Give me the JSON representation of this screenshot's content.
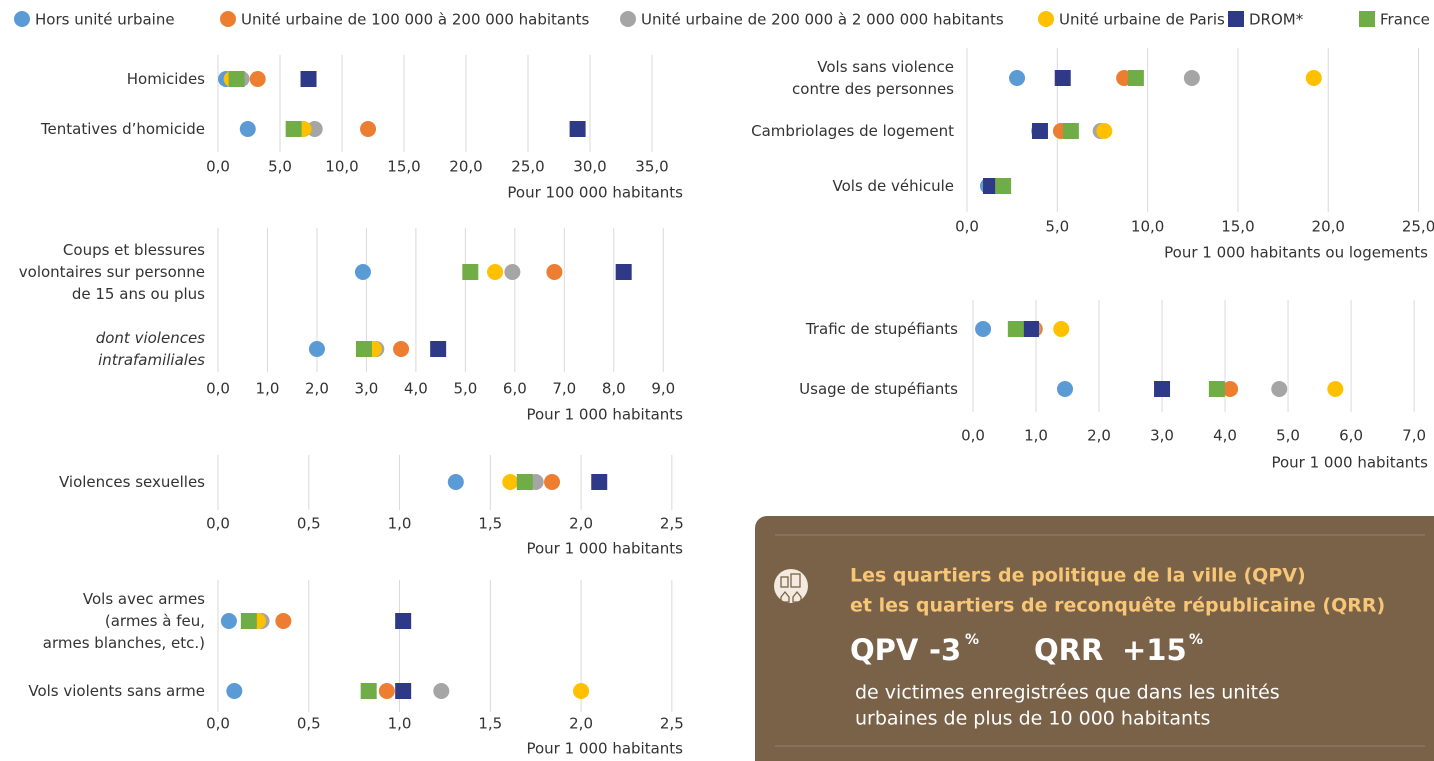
{
  "chart_data": [
    {
      "type": "dot",
      "categories": [
        "Homicides",
        "Tentatives d’homicide"
      ],
      "xlim": [
        0,
        37.5
      ],
      "xticks": [
        {
          "value": 0,
          "label": "0,0"
        },
        {
          "value": 5,
          "label": "5,0"
        },
        {
          "value": 10,
          "label": "10,0"
        },
        {
          "value": 15,
          "label": "15,0"
        },
        {
          "value": 20,
          "label": "20,0"
        },
        {
          "value": 25,
          "label": "25,0"
        },
        {
          "value": 30,
          "label": "30,0"
        },
        {
          "value": 35,
          "label": "35,0"
        }
      ],
      "x_label": "Pour 100 000 habitants",
      "grid": true,
      "series": [
        {
          "name": "Hors unité urbaine",
          "color": "#5b9bd5",
          "marker": "circle",
          "values": [
            0.65,
            2.4
          ]
        },
        {
          "name": "Unité urbaine de 100 000 à 200 000 habitants",
          "color": "#ed7d31",
          "marker": "circle",
          "values": [
            3.2,
            12.1
          ]
        },
        {
          "name": "Unité urbaine de 200 000 à 2 000 000 habitants",
          "color": "#a5a5a5",
          "marker": "circle",
          "values": [
            1.9,
            7.8
          ]
        },
        {
          "name": "Unité urbaine de Paris",
          "color": "#ffc000",
          "marker": "circle",
          "values": [
            1.1,
            6.9
          ]
        },
        {
          "name": "DROM*",
          "color": "#2e3a87",
          "marker": "square",
          "values": [
            7.3,
            29.0
          ]
        },
        {
          "name": "France",
          "color": "#70ad47",
          "marker": "square",
          "values": [
            1.5,
            6.1
          ]
        }
      ]
    },
    {
      "type": "dot",
      "categories": [
        "Coups et blessures\nvolontaires sur personne\nde 15 ans ou plus",
        "dont violences\nintrafamiliales"
      ],
      "category_style": [
        "normal",
        "italic"
      ],
      "xlim": [
        0,
        9.5
      ],
      "xticks": [
        {
          "value": 0,
          "label": "0,0"
        },
        {
          "value": 1,
          "label": "1,0"
        },
        {
          "value": 2,
          "label": "2,0"
        },
        {
          "value": 3,
          "label": "3,0"
        },
        {
          "value": 4,
          "label": "4,0"
        },
        {
          "value": 5,
          "label": "5,0"
        },
        {
          "value": 6,
          "label": "6,0"
        },
        {
          "value": 7,
          "label": "7,0"
        },
        {
          "value": 8,
          "label": "8,0"
        },
        {
          "value": 9,
          "label": "9,0"
        }
      ],
      "x_label": "Pour 1 000 habitants",
      "grid": true,
      "series": [
        {
          "name": "Hors unité urbaine",
          "color": "#5b9bd5",
          "marker": "circle",
          "values": [
            2.93,
            2.0
          ]
        },
        {
          "name": "Unité urbaine de 100 000 à 200 000 habitants",
          "color": "#ed7d31",
          "marker": "circle",
          "values": [
            6.8,
            3.7
          ]
        },
        {
          "name": "Unité urbaine de 200 000 à 2 000 000 habitants",
          "color": "#a5a5a5",
          "marker": "circle",
          "values": [
            5.95,
            3.2
          ]
        },
        {
          "name": "Unité urbaine de Paris",
          "color": "#ffc000",
          "marker": "circle",
          "values": [
            5.6,
            3.15
          ]
        },
        {
          "name": "DROM*",
          "color": "#2e3a87",
          "marker": "square",
          "values": [
            8.2,
            4.45
          ]
        },
        {
          "name": "France",
          "color": "#70ad47",
          "marker": "square",
          "values": [
            5.1,
            2.95
          ]
        }
      ]
    },
    {
      "type": "dot",
      "categories": [
        "Violences sexuelles"
      ],
      "xlim": [
        0,
        2.6
      ],
      "xticks": [
        {
          "value": 0,
          "label": "0,0"
        },
        {
          "value": 0.5,
          "label": "0,5"
        },
        {
          "value": 1,
          "label": "1,0"
        },
        {
          "value": 1.5,
          "label": "1,5"
        },
        {
          "value": 2,
          "label": "2,0"
        },
        {
          "value": 2.5,
          "label": "2,5"
        }
      ],
      "x_label": "Pour 1 000 habitants",
      "grid": true,
      "series": [
        {
          "name": "Hors unité urbaine",
          "color": "#5b9bd5",
          "marker": "circle",
          "values": [
            1.31
          ]
        },
        {
          "name": "Unité urbaine de 100 000 à 200 000 habitants",
          "color": "#ed7d31",
          "marker": "circle",
          "values": [
            1.84
          ]
        },
        {
          "name": "Unité urbaine de 200 000 à 2 000 000 habitants",
          "color": "#a5a5a5",
          "marker": "circle",
          "values": [
            1.75
          ]
        },
        {
          "name": "Unité urbaine de Paris",
          "color": "#ffc000",
          "marker": "circle",
          "values": [
            1.61
          ]
        },
        {
          "name": "DROM*",
          "color": "#2e3a87",
          "marker": "square",
          "values": [
            2.1
          ]
        },
        {
          "name": "France",
          "color": "#70ad47",
          "marker": "square",
          "values": [
            1.69
          ]
        }
      ]
    },
    {
      "type": "dot",
      "categories": [
        "Vols avec armes\n(armes à feu,\narmes blanches, etc.)",
        "Vols violents sans arme"
      ],
      "xlim": [
        0,
        2.6
      ],
      "xticks": [
        {
          "value": 0,
          "label": "0,0"
        },
        {
          "value": 0.5,
          "label": "0,5"
        },
        {
          "value": 1,
          "label": "1,0"
        },
        {
          "value": 1.5,
          "label": "1,5"
        },
        {
          "value": 2,
          "label": "2,0"
        },
        {
          "value": 2.5,
          "label": "2,5"
        }
      ],
      "x_label": "Pour 1 000 habitants",
      "grid": true,
      "series": [
        {
          "name": "Hors unité urbaine",
          "color": "#5b9bd5",
          "marker": "circle",
          "values": [
            0.06,
            0.09
          ]
        },
        {
          "name": "Unité urbaine de 100 000 à 200 000 habitants",
          "color": "#ed7d31",
          "marker": "circle",
          "values": [
            0.36,
            0.93
          ]
        },
        {
          "name": "Unité urbaine de 200 000 à 2 000 000 habitants",
          "color": "#a5a5a5",
          "marker": "circle",
          "values": [
            0.24,
            1.23
          ]
        },
        {
          "name": "Unité urbaine de Paris",
          "color": "#ffc000",
          "marker": "circle",
          "values": [
            0.22,
            2.0
          ]
        },
        {
          "name": "DROM*",
          "color": "#2e3a87",
          "marker": "square",
          "values": [
            1.02,
            1.02
          ]
        },
        {
          "name": "France",
          "color": "#70ad47",
          "marker": "square",
          "values": [
            0.17,
            0.83
          ]
        }
      ]
    },
    {
      "type": "dot",
      "categories": [
        "Vols sans violence\ncontre des personnes",
        "Cambriolages de logement",
        "Vols de véhicule"
      ],
      "xlim": [
        0,
        25.8
      ],
      "xticks": [
        {
          "value": 0,
          "label": "0,0"
        },
        {
          "value": 5,
          "label": "5,0"
        },
        {
          "value": 10,
          "label": "10,0"
        },
        {
          "value": 15,
          "label": "15,0"
        },
        {
          "value": 20,
          "label": "20,0"
        },
        {
          "value": 25,
          "label": "25,0"
        }
      ],
      "x_label": "Pour 1 000 habitants ou logements",
      "grid": true,
      "series": [
        {
          "name": "Hors unité urbaine",
          "color": "#5b9bd5",
          "marker": "circle",
          "values": [
            2.77,
            4.0,
            1.16
          ]
        },
        {
          "name": "Unité urbaine de 100 000 à 200 000 habitants",
          "color": "#ed7d31",
          "marker": "circle",
          "values": [
            8.7,
            5.2,
            1.8
          ]
        },
        {
          "name": "Unité urbaine de 200 000 à 2 000 000 habitants",
          "color": "#a5a5a5",
          "marker": "circle",
          "values": [
            12.45,
            7.4,
            1.9
          ]
        },
        {
          "name": "Unité urbaine de Paris",
          "color": "#ffc000",
          "marker": "circle",
          "values": [
            19.2,
            7.6,
            1.7
          ]
        },
        {
          "name": "DROM*",
          "color": "#2e3a87",
          "marker": "square",
          "values": [
            5.3,
            4.04,
            1.33
          ]
        },
        {
          "name": "France",
          "color": "#70ad47",
          "marker": "square",
          "values": [
            9.35,
            5.75,
            2.0
          ]
        }
      ]
    },
    {
      "type": "dot",
      "categories": [
        "Trafic de stupéfiants",
        "Usage de stupéfiants"
      ],
      "xlim": [
        0,
        7.3
      ],
      "xticks": [
        {
          "value": 0,
          "label": "0,0"
        },
        {
          "value": 1,
          "label": "1,0"
        },
        {
          "value": 2,
          "label": "2,0"
        },
        {
          "value": 3,
          "label": "3,0"
        },
        {
          "value": 4,
          "label": "4,0"
        },
        {
          "value": 5,
          "label": "5,0"
        },
        {
          "value": 6,
          "label": "6,0"
        },
        {
          "value": 7,
          "label": "7,0"
        }
      ],
      "x_label": "Pour 1 000 habitants",
      "grid": true,
      "series": [
        {
          "name": "Hors unité urbaine",
          "color": "#5b9bd5",
          "marker": "circle",
          "values": [
            0.16,
            1.46
          ]
        },
        {
          "name": "Unité urbaine de 100 000 à 200 000 habitants",
          "color": "#ed7d31",
          "marker": "circle",
          "values": [
            0.98,
            4.08
          ]
        },
        {
          "name": "Unité urbaine de 200 000 à 2 000 000 habitants",
          "color": "#a5a5a5",
          "marker": "circle",
          "values": [
            0.95,
            4.86
          ]
        },
        {
          "name": "Unité urbaine de Paris",
          "color": "#ffc000",
          "marker": "circle",
          "values": [
            1.4,
            5.75
          ]
        },
        {
          "name": "DROM*",
          "color": "#2e3a87",
          "marker": "square",
          "values": [
            0.92,
            3.0
          ]
        },
        {
          "name": "France",
          "color": "#70ad47",
          "marker": "square",
          "values": [
            0.68,
            3.87
          ]
        }
      ]
    }
  ],
  "info_box": {
    "title": [
      "Les quartiers de politique de la ville (QPV)",
      "et les quartiers de reconquête républicaine (QRR)"
    ],
    "stats": [
      {
        "label": "QPV",
        "value": "-3",
        "unit": "%"
      },
      {
        "label": "QRR",
        "value": "+15",
        "unit": "%"
      }
    ],
    "text": [
      "de victimes enregistrées que dans les unités",
      "urbaines de plus de 10 000 habitants"
    ]
  }
}
